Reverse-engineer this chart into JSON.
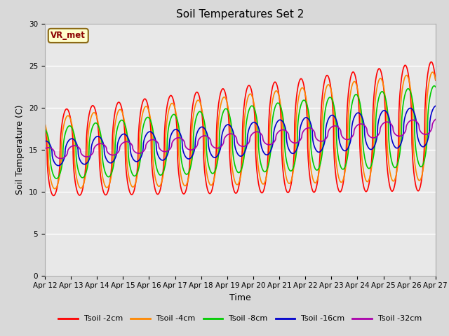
{
  "title": "Soil Temperatures Set 2",
  "xlabel": "Time",
  "ylabel": "Soil Temperature (C)",
  "ylim": [
    0,
    30
  ],
  "background_color": "#d9d9d9",
  "plot_bg_color": "#e8e8e8",
  "grid_color": "#ffffff",
  "series": {
    "Tsoil -2cm": {
      "color": "#ff0000",
      "lw": 1.2
    },
    "Tsoil -4cm": {
      "color": "#ff8800",
      "lw": 1.2
    },
    "Tsoil -8cm": {
      "color": "#00cc00",
      "lw": 1.2
    },
    "Tsoil -16cm": {
      "color": "#0000cc",
      "lw": 1.2
    },
    "Tsoil -32cm": {
      "color": "#aa00aa",
      "lw": 1.2
    }
  },
  "xtick_labels": [
    "Apr 12",
    "Apr 13",
    "Apr 14",
    "Apr 15",
    "Apr 16",
    "Apr 17",
    "Apr 18",
    "Apr 19",
    "Apr 20",
    "Apr 21",
    "Apr 22",
    "Apr 23",
    "Apr 24",
    "Apr 25",
    "Apr 26",
    "Apr 27"
  ],
  "ytick_labels": [
    "0",
    "5",
    "10",
    "15",
    "20",
    "25",
    "30"
  ],
  "ytick_values": [
    0,
    5,
    10,
    15,
    20,
    25,
    30
  ],
  "vr_met_label": "VR_met",
  "title_fontsize": 11,
  "axis_label_fontsize": 9,
  "tick_fontsize": 7.5,
  "legend_fontsize": 8
}
